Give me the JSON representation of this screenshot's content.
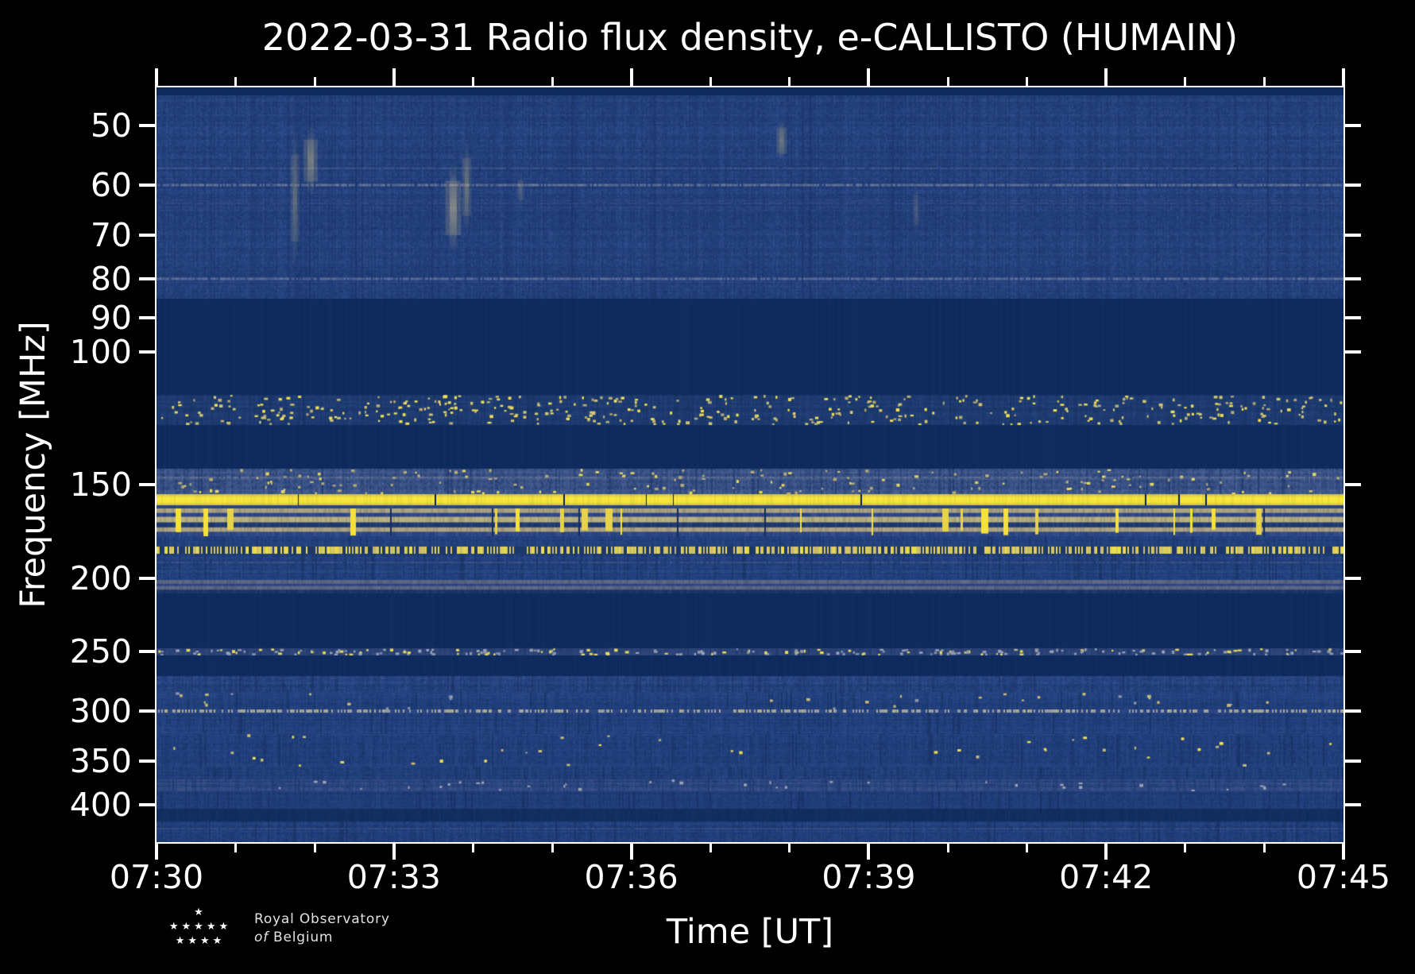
{
  "chart_data": {
    "type": "heatmap",
    "title": "2022-03-31 Radio flux density, e-CALLISTO (HUMAIN)",
    "xlabel": "Time [UT]",
    "ylabel": "Frequency [MHz]",
    "x_tick_labels": [
      "07:30",
      "07:33",
      "07:36",
      "07:39",
      "07:42",
      "07:45"
    ],
    "x_major_step_min": 3,
    "x_minor_step_min": 1,
    "time_span_minutes": 15,
    "y_tick_values": [
      50,
      60,
      70,
      80,
      90,
      100,
      150,
      200,
      250,
      300,
      350,
      400
    ],
    "y_scale": "log",
    "y_axis_inverted": true,
    "freq_range_mhz": [
      44.5,
      448.5
    ],
    "grid": false,
    "legend": "none",
    "colormap_hint": "dark navy background noise, gray/tan RFI rows, saturated yellow strong RFI carriers",
    "bands": [
      {
        "style": "solid",
        "f0": 44.5,
        "f1": 45.6,
        "color": "#0e2a5a"
      },
      {
        "style": "noise",
        "f0": 45.6,
        "f1": 85.0,
        "dark": "#16305f",
        "mid": "#23407d",
        "light": "#3b5694",
        "colAmp": 0.1,
        "cellAmp": 0.16,
        "rowAmp": 0.1,
        "tanChance": 0.0012,
        "tan": "#9a9782",
        "darkColChance": 0.02
      },
      {
        "style": "solid",
        "f0": 85.0,
        "f1": 114.0,
        "color": "#0f2b5e",
        "tex": 0.02
      },
      {
        "style": "noise",
        "f0": 114.0,
        "f1": 125.0,
        "dark": "#14305f",
        "mid": "#1d3a6f",
        "light": "#2c4a86",
        "colAmp": 0.12,
        "cellAmp": 0.14,
        "rowAmp": 0.12,
        "speckDensity": 0.045,
        "specks": [
          "#b7ab75",
          "#d3c66f",
          "#f0e056"
        ],
        "darkColChance": 0.03
      },
      {
        "style": "solid",
        "f0": 125.0,
        "f1": 143.0,
        "color": "#0f2b5e",
        "tex": 0.02
      },
      {
        "style": "noise",
        "f0": 143.0,
        "f1": 154.5,
        "dark": "#1b3567",
        "mid": "#3a5286",
        "light": "#5a6e9a",
        "colAmp": 0.14,
        "cellAmp": 0.16,
        "rowAmp": 0.14,
        "speckDensity": 0.02,
        "specks": [
          "#b7ab75",
          "#e6d75f"
        ],
        "darkColChance": 0.05
      },
      {
        "style": "yellowline",
        "f0": 154.5,
        "f1": 160.0,
        "edge": "#cdbf4e",
        "core": "#f8e53e",
        "gapColor": "#0a2148",
        "gapDensity": 0.012
      },
      {
        "style": "solid",
        "f0": 160.0,
        "f1": 161.6,
        "color": "#2b4586",
        "tex": 0.05
      },
      {
        "style": "tanbars",
        "f0": 161.6,
        "f1": 176.0,
        "tanA": "#a8a183",
        "tanB": "#b6ae7e",
        "blueA": "#2b4586",
        "blueB": "#1d3870",
        "yellow": "#f5e03c",
        "barDensity": 0.085,
        "gapDensity": 0.012
      },
      {
        "style": "noise",
        "f0": 176.0,
        "f1": 181.5,
        "dark": "#173262",
        "mid": "#22407e",
        "light": "#33508e",
        "colAmp": 0.12,
        "cellAmp": 0.15,
        "rowAmp": 0.1,
        "darkColChance": 0.04
      },
      {
        "style": "dashline",
        "f0": 181.5,
        "f1": 185.5,
        "base": "#1c3768",
        "dash1": "#c2b575",
        "dash2": "#f2e049",
        "density": 0.55
      },
      {
        "style": "noise",
        "f0": 185.5,
        "f1": 201.0,
        "dark": "#14305f",
        "mid": "#22407e",
        "light": "#33508e",
        "colAmp": 0.12,
        "cellAmp": 0.16,
        "rowAmp": 0.12,
        "darkColChance": 0.06
      },
      {
        "style": "grayband",
        "f0": 201.0,
        "f1": 209.5,
        "gray": "#5c6684",
        "blue": "#2b4586",
        "dark": "#1a3468"
      },
      {
        "style": "solid",
        "f0": 209.5,
        "f1": 248.0,
        "color": "#0f2b5e",
        "tex": 0.02
      },
      {
        "style": "noise",
        "f0": 248.0,
        "f1": 253.0,
        "dark": "#1b3569",
        "mid": "#2c4378",
        "light": "#3f5585",
        "colAmp": 0.14,
        "cellAmp": 0.14,
        "rowAmp": 0.08,
        "speckDensity": 0.1,
        "specks": [
          "#99a2b8",
          "#8f97ab",
          "#e8d858"
        ],
        "darkColChance": 0.05
      },
      {
        "style": "solid",
        "f0": 253.0,
        "f1": 270.0,
        "color": "#0f2b5e",
        "tex": 0.02
      },
      {
        "style": "noise",
        "f0": 270.0,
        "f1": 283.0,
        "dark": "#16315f",
        "mid": "#24417f",
        "light": "#3a5793",
        "colAmp": 0.13,
        "cellAmp": 0.17,
        "rowAmp": 0.12,
        "tanChance": 0.002,
        "tan": "#9a9782",
        "darkColChance": 0.05
      },
      {
        "style": "noise",
        "f0": 283.0,
        "f1": 299.0,
        "dark": "#152f5e",
        "mid": "#21407d",
        "light": "#32508e",
        "colAmp": 0.12,
        "cellAmp": 0.15,
        "rowAmp": 0.12,
        "speckDensity": 0.006,
        "specks": [
          "#8f97ab",
          "#c6ba77"
        ],
        "darkColChance": 0.05
      },
      {
        "style": "dashline",
        "f0": 299.0,
        "f1": 301.5,
        "base": "#2c4684",
        "dash1": "#8d95a9",
        "dash2": "#b9ae80",
        "density": 0.5
      },
      {
        "style": "noise",
        "f0": 301.5,
        "f1": 322.0,
        "dark": "#152f5e",
        "mid": "#22407e",
        "light": "#33508e",
        "colAmp": 0.12,
        "cellAmp": 0.16,
        "rowAmp": 0.12,
        "darkColChance": 0.05
      },
      {
        "style": "noise",
        "f0": 322.0,
        "f1": 356.0,
        "dark": "#152f5e",
        "mid": "#22407e",
        "light": "#334f8d",
        "colAmp": 0.12,
        "cellAmp": 0.16,
        "rowAmp": 0.12,
        "speckDensity": 0.004,
        "specks": [
          "#c6ba77",
          "#f0df52"
        ],
        "darkColChance": 0.05
      },
      {
        "style": "noise",
        "f0": 356.0,
        "f1": 370.0,
        "dark": "#152f5e",
        "mid": "#21407c",
        "light": "#32508c",
        "colAmp": 0.12,
        "cellAmp": 0.15,
        "rowAmp": 0.12,
        "darkColChance": 0.05
      },
      {
        "style": "noise",
        "f0": 370.0,
        "f1": 384.0,
        "dark": "#1a3565",
        "mid": "#2c4682",
        "light": "#4a5d8e",
        "colAmp": 0.12,
        "cellAmp": 0.15,
        "rowAmp": 0.14,
        "speckDensity": 0.01,
        "specks": [
          "#9aa2b4"
        ],
        "darkColChance": 0.05
      },
      {
        "style": "noise",
        "f0": 384.0,
        "f1": 405.0,
        "dark": "#142e5c",
        "mid": "#1f3c78",
        "light": "#2f4c88",
        "colAmp": 0.11,
        "cellAmp": 0.15,
        "rowAmp": 0.11,
        "darkColChance": 0.05
      },
      {
        "style": "solid",
        "f0": 405.0,
        "f1": 421.0,
        "color": "#112e5f",
        "tex": 0.03
      },
      {
        "style": "noise",
        "f0": 421.0,
        "f1": 448.5,
        "dark": "#152f5e",
        "mid": "#22407e",
        "light": "#33508e",
        "colAmp": 0.12,
        "cellAmp": 0.16,
        "rowAmp": 0.12,
        "tanChance": 0.001,
        "tan": "#9a9782",
        "darkColChance": 0.06
      }
    ],
    "hlines": [
      {
        "f": 57.0,
        "color": "#6a7694",
        "alpha": 0.3,
        "th": 2
      },
      {
        "f": 60.0,
        "color": "#8d93a6",
        "alpha": 0.5,
        "th": 3
      },
      {
        "f": 63.5,
        "color": "#44598c",
        "alpha": 0.4,
        "th": 2
      },
      {
        "f": 80.0,
        "color": "#8d93a6",
        "alpha": 0.45,
        "th": 3
      },
      {
        "f": 147.0,
        "color": "#8d93a6",
        "alpha": 0.35,
        "th": 2
      },
      {
        "f": 190.5,
        "color": "#6a7694",
        "alpha": 0.3,
        "th": 2
      },
      {
        "f": 196.0,
        "color": "#44598c",
        "alpha": 0.35,
        "th": 2
      },
      {
        "f": 430.0,
        "color": "#56628a",
        "alpha": 0.3,
        "th": 2
      }
    ],
    "plumes": [
      {
        "m": 1.75,
        "f0": 50,
        "f1": 78,
        "w": 5,
        "color": "#b7ad85",
        "alpha": 0.3
      },
      {
        "m": 1.95,
        "f0": 50,
        "f1": 62,
        "w": 8,
        "color": "#c3b98d",
        "alpha": 0.4
      },
      {
        "m": 3.75,
        "f0": 56,
        "f1": 74,
        "w": 9,
        "color": "#c3b98d",
        "alpha": 0.45
      },
      {
        "m": 3.92,
        "f0": 52,
        "f1": 70,
        "w": 5,
        "color": "#b7ad85",
        "alpha": 0.35
      },
      {
        "m": 4.6,
        "f0": 58,
        "f1": 64,
        "w": 4,
        "color": "#a8a088",
        "alpha": 0.25
      },
      {
        "m": 7.9,
        "f0": 49,
        "f1": 56,
        "w": 6,
        "color": "#b7ad85",
        "alpha": 0.35
      },
      {
        "m": 9.6,
        "f0": 60,
        "f1": 70,
        "w": 4,
        "color": "#a8a088",
        "alpha": 0.2
      }
    ]
  },
  "logo": {
    "text_line1": "Royal Observatory",
    "text_line2_italic": "of",
    "text_line2": "Belgium",
    "star_rows": [
      1,
      5,
      4
    ]
  },
  "colors": {
    "background": "#000000",
    "axes": "#ffffff",
    "strong_rfi_yellow": "#f5e03c",
    "quiet_band_navy": "#0f2b5e",
    "noise_navy": "#23407d"
  }
}
